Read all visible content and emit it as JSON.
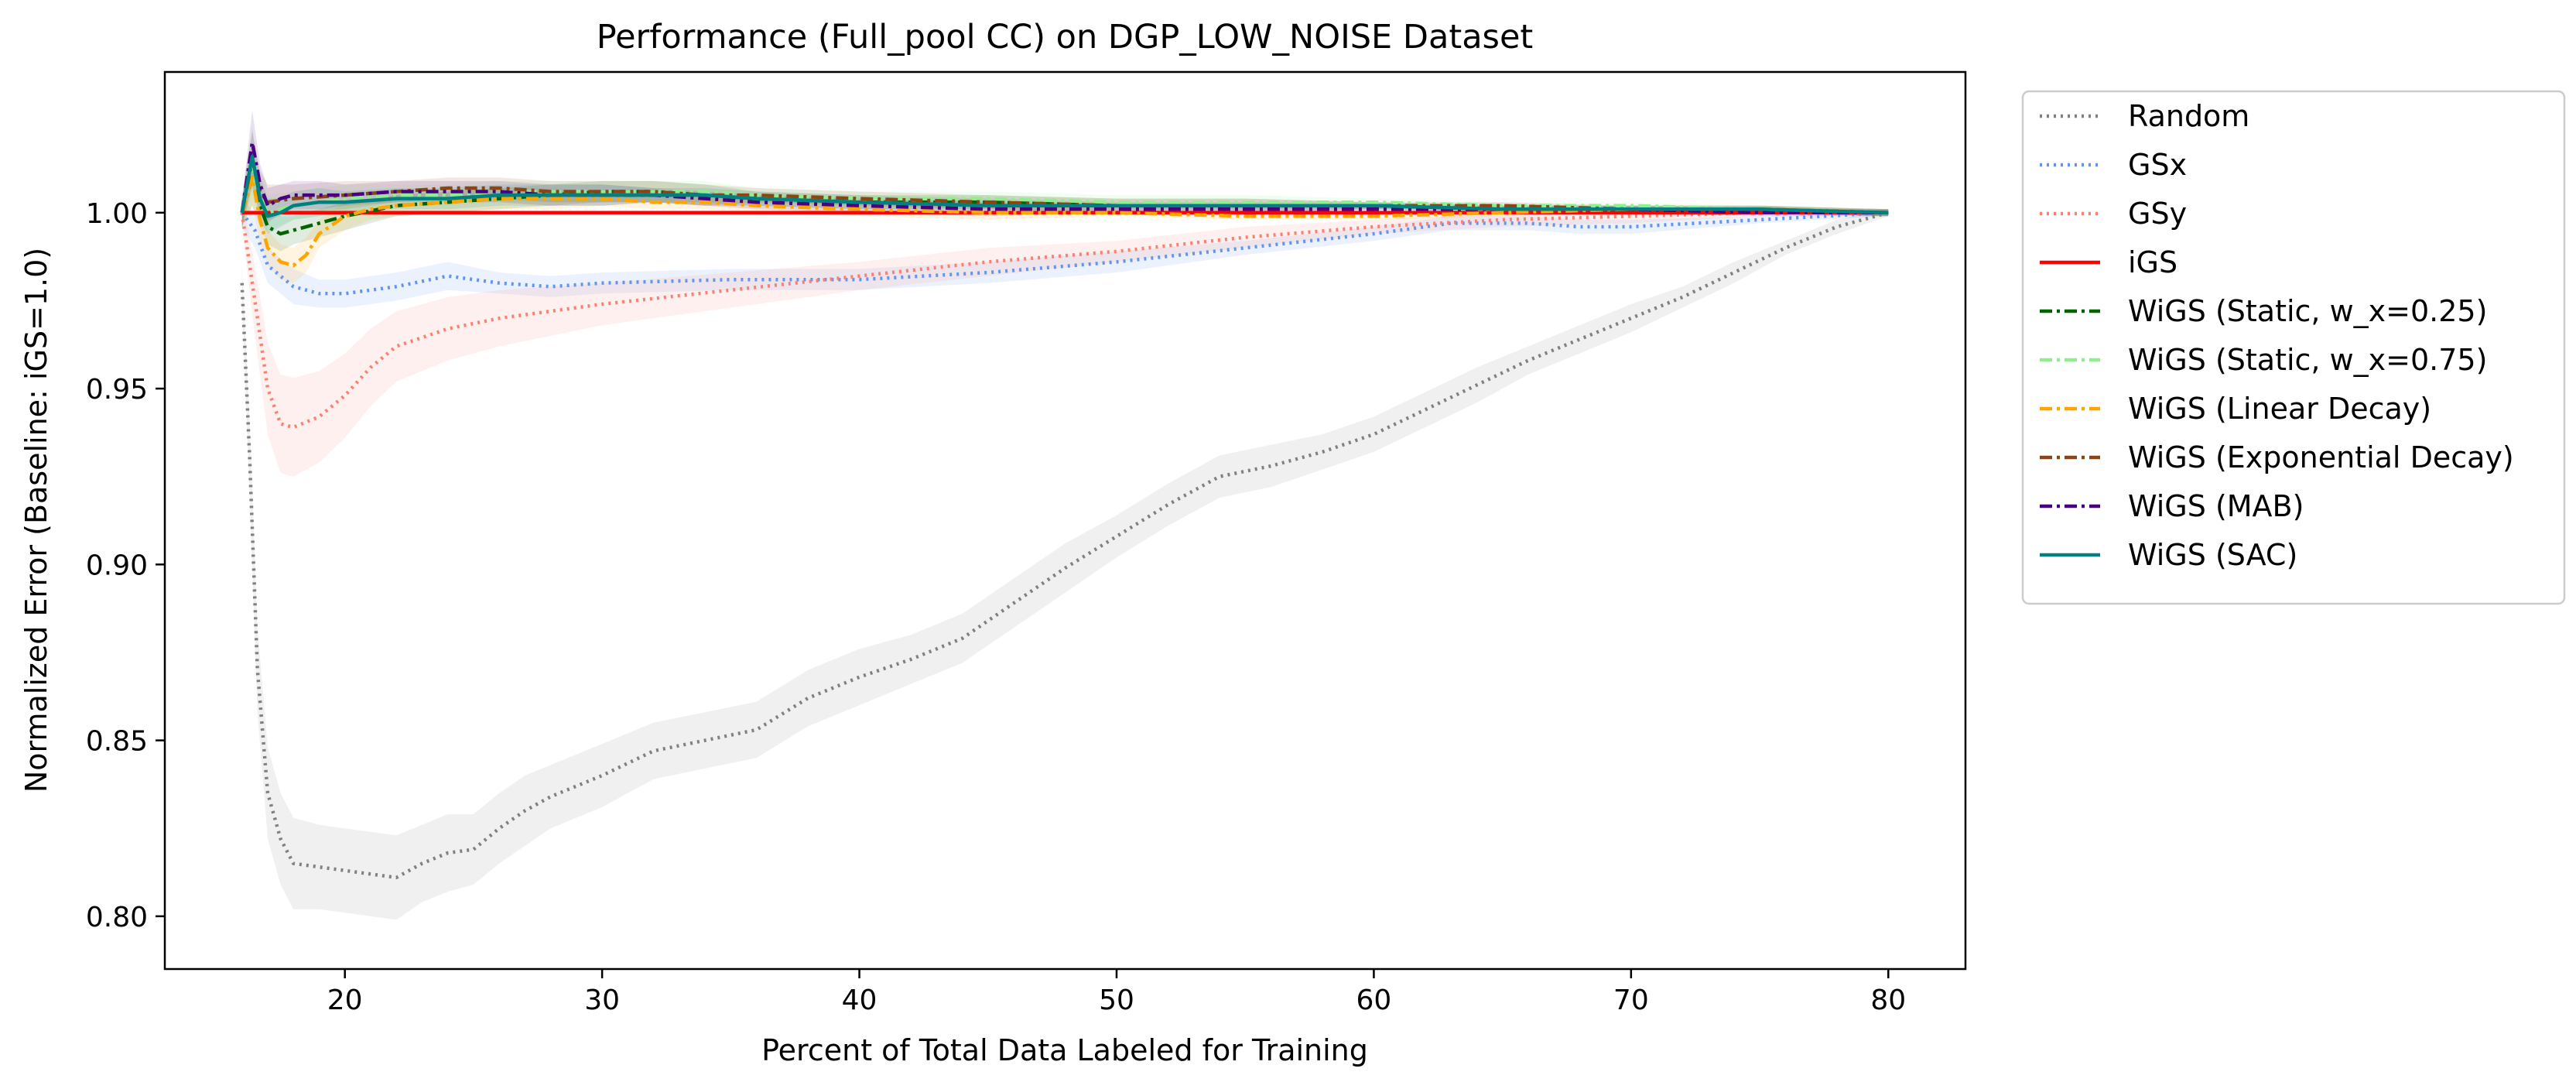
{
  "chart_data": {
    "type": "line",
    "title": "Performance (Full_pool CC) on DGP_LOW_NOISE Dataset",
    "xlabel": "Percent of Total Data Labeled for Training",
    "ylabel": "Normalized Error (Baseline: iGS=1.0)",
    "xlim": [
      13,
      83
    ],
    "ylim": [
      0.785,
      1.04
    ],
    "xticks": [
      20,
      30,
      40,
      50,
      60,
      70,
      80
    ],
    "xtick_labels": [
      "20",
      "30",
      "40",
      "50",
      "60",
      "70",
      "80"
    ],
    "yticks": [
      0.8,
      0.85,
      0.9,
      0.95,
      1.0
    ],
    "ytick_labels": [
      "0.80",
      "0.85",
      "0.90",
      "0.95",
      "1.00"
    ],
    "grid": false,
    "legend_position": "outside-right",
    "series": [
      {
        "name": "Random",
        "color": "#808080",
        "style": "dotted",
        "band": true,
        "x": [
          16,
          16.3,
          16.6,
          17,
          17.5,
          18,
          19,
          20,
          21,
          22,
          23,
          24,
          25,
          26,
          27,
          28,
          30,
          32,
          34,
          36,
          38,
          40,
          42,
          44,
          46,
          48,
          50,
          52,
          54,
          56,
          58,
          60,
          62,
          64,
          66,
          68,
          70,
          72,
          74,
          76,
          78,
          80
        ],
        "y": [
          0.98,
          0.93,
          0.87,
          0.835,
          0.822,
          0.815,
          0.814,
          0.813,
          0.812,
          0.811,
          0.815,
          0.818,
          0.819,
          0.825,
          0.83,
          0.834,
          0.84,
          0.847,
          0.85,
          0.853,
          0.862,
          0.868,
          0.873,
          0.879,
          0.889,
          0.899,
          0.908,
          0.917,
          0.925,
          0.928,
          0.932,
          0.937,
          0.944,
          0.951,
          0.958,
          0.964,
          0.97,
          0.976,
          0.983,
          0.99,
          0.996,
          1.0
        ],
        "band_width": [
          0.005,
          0.01,
          0.012,
          0.013,
          0.013,
          0.013,
          0.012,
          0.012,
          0.012,
          0.012,
          0.011,
          0.011,
          0.01,
          0.01,
          0.01,
          0.009,
          0.009,
          0.008,
          0.008,
          0.008,
          0.008,
          0.008,
          0.007,
          0.007,
          0.007,
          0.007,
          0.006,
          0.006,
          0.006,
          0.006,
          0.005,
          0.005,
          0.005,
          0.005,
          0.004,
          0.004,
          0.004,
          0.003,
          0.003,
          0.002,
          0.002,
          0.001
        ]
      },
      {
        "name": "GSx",
        "color": "#6495ed",
        "style": "dotted",
        "band": true,
        "x": [
          16,
          16.5,
          17,
          18,
          19,
          20,
          22,
          24,
          26,
          28,
          30,
          35,
          40,
          45,
          50,
          55,
          60,
          63,
          66,
          68,
          70,
          75,
          80
        ],
        "y": [
          1.0,
          0.995,
          0.985,
          0.979,
          0.977,
          0.977,
          0.979,
          0.982,
          0.98,
          0.979,
          0.98,
          0.981,
          0.981,
          0.983,
          0.986,
          0.99,
          0.994,
          0.997,
          0.997,
          0.996,
          0.996,
          0.998,
          1.0
        ],
        "band_width": [
          0.004,
          0.005,
          0.005,
          0.005,
          0.004,
          0.004,
          0.004,
          0.004,
          0.003,
          0.003,
          0.003,
          0.003,
          0.003,
          0.003,
          0.003,
          0.002,
          0.002,
          0.002,
          0.002,
          0.002,
          0.002,
          0.001,
          0.001
        ]
      },
      {
        "name": "GSy",
        "color": "#fa8072",
        "style": "dotted",
        "band": true,
        "x": [
          16,
          16.5,
          17,
          17.5,
          18,
          19,
          20,
          21,
          22,
          24,
          26,
          28,
          30,
          35,
          40,
          45,
          50,
          55,
          60,
          65,
          70,
          75,
          80
        ],
        "y": [
          1.0,
          0.975,
          0.95,
          0.94,
          0.939,
          0.942,
          0.948,
          0.956,
          0.962,
          0.967,
          0.97,
          0.972,
          0.974,
          0.978,
          0.982,
          0.986,
          0.989,
          0.993,
          0.996,
          0.998,
          0.999,
          1.0,
          1.0
        ],
        "band_width": [
          0.004,
          0.01,
          0.013,
          0.014,
          0.014,
          0.013,
          0.012,
          0.011,
          0.01,
          0.009,
          0.008,
          0.007,
          0.006,
          0.005,
          0.004,
          0.004,
          0.003,
          0.003,
          0.002,
          0.002,
          0.002,
          0.001,
          0.001
        ]
      },
      {
        "name": "iGS",
        "color": "#ff0000",
        "style": "solid",
        "band": false,
        "x": [
          16,
          80
        ],
        "y": [
          1.0,
          1.0
        ]
      },
      {
        "name": "WiGS (Static, w_x=0.25)",
        "color": "#006400",
        "style": "dashdot",
        "band": true,
        "x": [
          16,
          16.4,
          16.7,
          17,
          17.5,
          18,
          19,
          20,
          22,
          24,
          26,
          28,
          30,
          32,
          34,
          36,
          40,
          45,
          50,
          55,
          60,
          65,
          70,
          75,
          80
        ],
        "y": [
          1.0,
          1.01,
          1.002,
          0.996,
          0.994,
          0.995,
          0.997,
          0.999,
          1.002,
          1.003,
          1.004,
          1.005,
          1.006,
          1.006,
          1.005,
          1.004,
          1.003,
          1.003,
          1.002,
          1.002,
          1.002,
          1.001,
          1.001,
          1.001,
          1.0
        ],
        "band_width": [
          0.004,
          0.008,
          0.006,
          0.005,
          0.005,
          0.004,
          0.004,
          0.004,
          0.003,
          0.003,
          0.003,
          0.003,
          0.003,
          0.003,
          0.003,
          0.002,
          0.002,
          0.002,
          0.002,
          0.002,
          0.001,
          0.001,
          0.001,
          0.001,
          0.001
        ]
      },
      {
        "name": "WiGS (Static, w_x=0.75)",
        "color": "#90ee90",
        "style": "dashdot",
        "band": true,
        "x": [
          16,
          16.4,
          16.7,
          17,
          18,
          20,
          22,
          24,
          26,
          28,
          30,
          32,
          34,
          36,
          40,
          45,
          50,
          55,
          60,
          65,
          70,
          75,
          80
        ],
        "y": [
          1.0,
          1.012,
          1.005,
          1.0,
          1.002,
          1.004,
          1.005,
          1.005,
          1.006,
          1.006,
          1.006,
          1.006,
          1.006,
          1.005,
          1.004,
          1.004,
          1.003,
          1.003,
          1.003,
          1.002,
          1.002,
          1.001,
          1.0
        ],
        "band_width": [
          0.004,
          0.008,
          0.006,
          0.005,
          0.004,
          0.004,
          0.003,
          0.003,
          0.003,
          0.003,
          0.003,
          0.003,
          0.003,
          0.002,
          0.002,
          0.002,
          0.002,
          0.002,
          0.001,
          0.001,
          0.001,
          0.001,
          0.001
        ]
      },
      {
        "name": "WiGS (Linear Decay)",
        "color": "#ffa500",
        "style": "dashdot",
        "band": true,
        "x": [
          16,
          16.4,
          16.7,
          17,
          17.5,
          18,
          18.5,
          19,
          20,
          21,
          22,
          24,
          26,
          28,
          30,
          32,
          34,
          36,
          40,
          45,
          50,
          55,
          60,
          65,
          70,
          75,
          80
        ],
        "y": [
          1.0,
          1.01,
          0.998,
          0.99,
          0.986,
          0.985,
          0.988,
          0.994,
          0.999,
          1.001,
          1.002,
          1.003,
          1.004,
          1.004,
          1.004,
          1.003,
          1.003,
          1.002,
          1.001,
          1.0,
          1.0,
          0.999,
          0.999,
          1.0,
          1.001,
          1.001,
          1.0
        ],
        "band_width": [
          0.004,
          0.008,
          0.006,
          0.005,
          0.005,
          0.005,
          0.005,
          0.004,
          0.004,
          0.003,
          0.003,
          0.003,
          0.003,
          0.003,
          0.002,
          0.002,
          0.002,
          0.002,
          0.002,
          0.002,
          0.001,
          0.001,
          0.001,
          0.001,
          0.001,
          0.001,
          0.001
        ]
      },
      {
        "name": "WiGS (Exponential Decay)",
        "color": "#8b4513",
        "style": "dashdot",
        "band": true,
        "x": [
          16,
          16.4,
          16.7,
          17,
          18,
          20,
          22,
          24,
          26,
          28,
          30,
          32,
          34,
          36,
          40,
          45,
          50,
          55,
          60,
          65,
          70,
          75,
          80
        ],
        "y": [
          1.0,
          1.015,
          1.006,
          1.003,
          1.004,
          1.005,
          1.006,
          1.007,
          1.007,
          1.006,
          1.006,
          1.006,
          1.005,
          1.005,
          1.004,
          1.003,
          1.002,
          1.002,
          1.002,
          1.002,
          1.001,
          1.001,
          1.0
        ],
        "band_width": [
          0.004,
          0.008,
          0.006,
          0.005,
          0.004,
          0.004,
          0.003,
          0.003,
          0.003,
          0.003,
          0.003,
          0.003,
          0.003,
          0.002,
          0.002,
          0.002,
          0.002,
          0.002,
          0.001,
          0.001,
          0.001,
          0.001,
          0.001
        ]
      },
      {
        "name": "WiGS (MAB)",
        "color": "#4b0082",
        "style": "dashdot",
        "band": true,
        "x": [
          16,
          16.4,
          16.7,
          17,
          17.5,
          18,
          19,
          20,
          22,
          24,
          26,
          28,
          30,
          32,
          34,
          36,
          40,
          45,
          50,
          55,
          60,
          65,
          70,
          75,
          80
        ],
        "y": [
          1.0,
          1.02,
          1.008,
          1.002,
          1.004,
          1.005,
          1.005,
          1.005,
          1.006,
          1.006,
          1.006,
          1.005,
          1.005,
          1.005,
          1.004,
          1.003,
          1.002,
          1.001,
          1.001,
          1.001,
          1.001,
          1.001,
          1.001,
          1.0,
          1.0
        ],
        "band_width": [
          0.004,
          0.009,
          0.006,
          0.005,
          0.004,
          0.004,
          0.004,
          0.003,
          0.003,
          0.003,
          0.003,
          0.003,
          0.003,
          0.002,
          0.002,
          0.002,
          0.002,
          0.002,
          0.001,
          0.001,
          0.001,
          0.001,
          0.001,
          0.001,
          0.001
        ]
      },
      {
        "name": "WiGS (SAC)",
        "color": "#008080",
        "style": "solid",
        "band": true,
        "x": [
          16,
          16.4,
          16.7,
          17,
          17.5,
          18,
          19,
          20,
          22,
          24,
          26,
          28,
          30,
          32,
          34,
          36,
          40,
          45,
          50,
          55,
          60,
          65,
          70,
          75,
          80
        ],
        "y": [
          1.0,
          1.016,
          1.004,
          0.999,
          1.0,
          1.002,
          1.003,
          1.003,
          1.004,
          1.004,
          1.005,
          1.005,
          1.005,
          1.005,
          1.005,
          1.004,
          1.003,
          1.002,
          1.002,
          1.002,
          1.002,
          1.001,
          1.001,
          1.001,
          1.0
        ],
        "band_width": [
          0.004,
          0.008,
          0.006,
          0.005,
          0.004,
          0.004,
          0.004,
          0.003,
          0.003,
          0.003,
          0.003,
          0.003,
          0.003,
          0.002,
          0.002,
          0.002,
          0.002,
          0.002,
          0.001,
          0.001,
          0.001,
          0.001,
          0.001,
          0.001,
          0.001
        ]
      }
    ]
  }
}
